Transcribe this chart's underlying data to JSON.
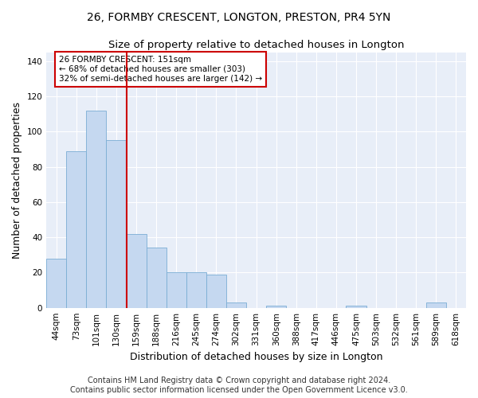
{
  "title": "26, FORMBY CRESCENT, LONGTON, PRESTON, PR4 5YN",
  "subtitle": "Size of property relative to detached houses in Longton",
  "xlabel": "Distribution of detached houses by size in Longton",
  "ylabel": "Number of detached properties",
  "footer_line1": "Contains HM Land Registry data © Crown copyright and database right 2024.",
  "footer_line2": "Contains public sector information licensed under the Open Government Licence v3.0.",
  "bar_labels": [
    "44sqm",
    "73sqm",
    "101sqm",
    "130sqm",
    "159sqm",
    "188sqm",
    "216sqm",
    "245sqm",
    "274sqm",
    "302sqm",
    "331sqm",
    "360sqm",
    "388sqm",
    "417sqm",
    "446sqm",
    "475sqm",
    "503sqm",
    "532sqm",
    "561sqm",
    "589sqm",
    "618sqm"
  ],
  "bar_values": [
    28,
    89,
    112,
    95,
    42,
    34,
    20,
    20,
    19,
    3,
    0,
    1,
    0,
    0,
    0,
    1,
    0,
    0,
    0,
    3,
    0
  ],
  "bar_color": "#c5d8f0",
  "bar_edge_color": "#7aadd4",
  "bg_color": "#e8eef8",
  "grid_color": "#ffffff",
  "property_label": "26 FORMBY CRESCENT: 151sqm",
  "annotation_line1": "← 68% of detached houses are smaller (303)",
  "annotation_line2": "32% of semi-detached houses are larger (142) →",
  "vline_position": 4.0,
  "vline_color": "#cc0000",
  "annotation_box_edge_color": "#cc0000",
  "ylim": [
    0,
    145
  ],
  "yticks": [
    0,
    20,
    40,
    60,
    80,
    100,
    120,
    140
  ],
  "title_fontsize": 10,
  "subtitle_fontsize": 9.5,
  "xlabel_fontsize": 9,
  "ylabel_fontsize": 9,
  "tick_fontsize": 7.5,
  "footer_fontsize": 7
}
